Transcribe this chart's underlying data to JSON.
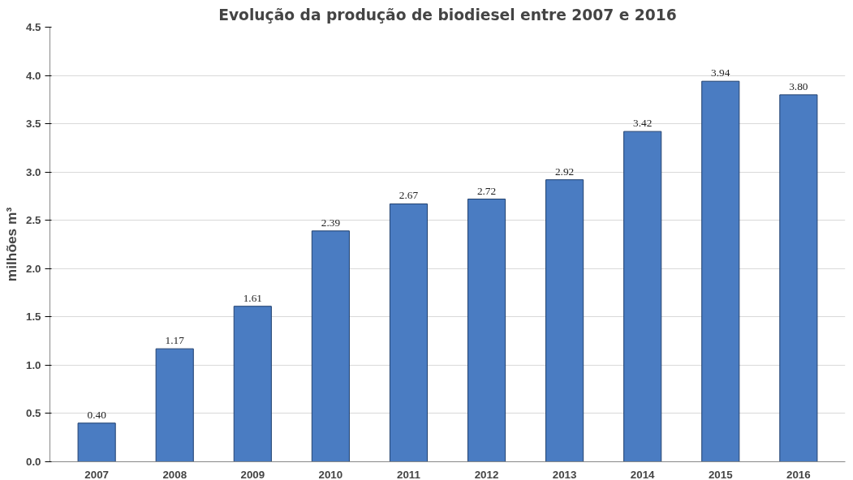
{
  "chart_data": {
    "type": "bar",
    "title": "Evolução da produção de biodiesel entre 2007 e 2016",
    "ylabel": "milhões m³",
    "categories": [
      "2007",
      "2008",
      "2009",
      "2010",
      "2011",
      "2012",
      "2013",
      "2014",
      "2015",
      "2016"
    ],
    "values": [
      0.4,
      1.17,
      1.61,
      2.39,
      2.67,
      2.72,
      2.92,
      3.42,
      3.94,
      3.8
    ],
    "value_labels": [
      "0.40",
      "1.17",
      "1.61",
      "2.39",
      "2.67",
      "2.72",
      "2.92",
      "3.42",
      "3.94",
      "3.80"
    ],
    "color": "#4a7cc2",
    "ylim": [
      0,
      4.5
    ],
    "yticks": [
      {
        "value": 0,
        "label": "0.0"
      },
      {
        "value": 0.5,
        "label": "0.5"
      },
      {
        "value": 1,
        "label": "1.0"
      },
      {
        "value": 1.5,
        "label": "1.5"
      },
      {
        "value": 2,
        "label": "2.0"
      },
      {
        "value": 2.5,
        "label": "2.5"
      },
      {
        "value": 3,
        "label": "3.0"
      },
      {
        "value": 3.5,
        "label": "3.5"
      },
      {
        "value": 4,
        "label": "4.0"
      },
      {
        "value": 4.5,
        "label": "4.5"
      }
    ],
    "grid": "y"
  }
}
